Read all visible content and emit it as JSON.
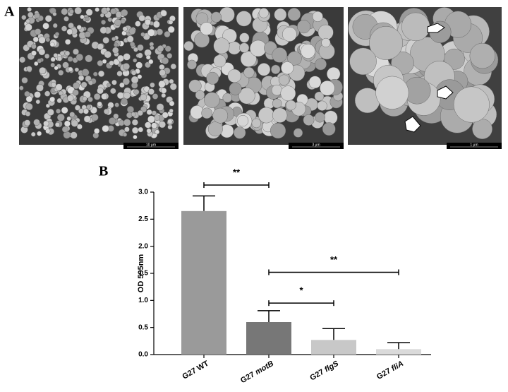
{
  "panels": {
    "a": "A",
    "b": "B"
  },
  "scale_bars": [
    "10 μm",
    "3 μm",
    "1 μm"
  ],
  "chart_data": {
    "type": "bar",
    "ylabel": "OD 595nm",
    "categories": [
      "G27 WT",
      "G27 motB",
      "G27 flgS",
      "G27 fliA"
    ],
    "values": [
      2.65,
      0.6,
      0.27,
      0.1
    ],
    "errors": [
      0.28,
      0.21,
      0.21,
      0.12
    ],
    "colors": [
      "#9a9a9a",
      "#777777",
      "#c8c8c8",
      "#dadada"
    ],
    "ylim": [
      0,
      3
    ],
    "yticks": [
      {
        "value": 0,
        "label": "0.0"
      },
      0.5,
      {
        "value": 1,
        "label": "1.0"
      },
      1.5,
      {
        "value": 2,
        "label": "2.0"
      },
      2.5,
      {
        "value": 3,
        "label": "3.0"
      }
    ],
    "grid": false,
    "annotations": [
      {
        "text": "**",
        "from": "G27 WT",
        "to": "G27 motB",
        "y": 3.13
      },
      {
        "text": "**",
        "from": "G27 motB",
        "to": "G27 fliA",
        "y": 1.52
      },
      {
        "text": "*",
        "from": "G27 motB",
        "to": "G27 flgS",
        "y": 0.95
      }
    ]
  }
}
